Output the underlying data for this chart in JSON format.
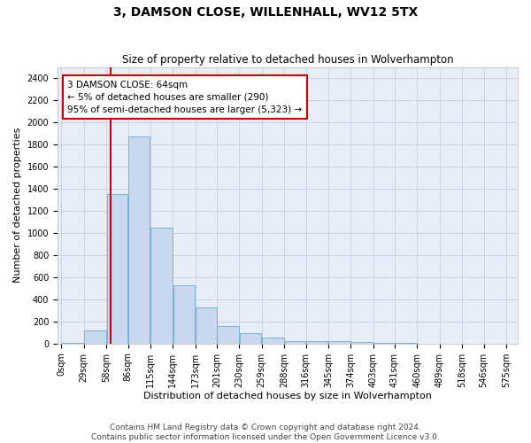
{
  "title": "3, DAMSON CLOSE, WILLENHALL, WV12 5TX",
  "subtitle": "Size of property relative to detached houses in Wolverhampton",
  "xlabel": "Distribution of detached houses by size in Wolverhampton",
  "ylabel": "Number of detached properties",
  "footer_line1": "Contains HM Land Registry data © Crown copyright and database right 2024.",
  "footer_line2": "Contains public sector information licensed under the Open Government Licence v3.0.",
  "bar_color": "#c8d9ef",
  "bar_edge_color": "#6aaad4",
  "grid_color": "#c8d4e8",
  "bg_color": "#e8eef8",
  "property_line_color": "#cc0000",
  "annotation_box_color": "#cc0000",
  "annotation_line1": "3 DAMSON CLOSE: 64sqm",
  "annotation_line2": "← 5% of detached houses are smaller (290)",
  "annotation_line3": "95% of semi-detached houses are larger (5,323) →",
  "property_size": 64,
  "bar_bins": [
    0,
    29,
    58,
    86,
    115,
    144,
    173,
    201,
    230,
    259,
    288,
    316,
    345,
    374,
    403,
    431,
    460,
    489,
    518,
    546,
    575
  ],
  "bar_heights": [
    5,
    120,
    1350,
    1870,
    1050,
    530,
    330,
    155,
    90,
    50,
    25,
    20,
    18,
    15,
    8,
    2,
    1,
    0,
    1,
    0
  ],
  "xlim": [
    -5,
    590
  ],
  "ylim": [
    0,
    2500
  ],
  "yticks": [
    0,
    200,
    400,
    600,
    800,
    1000,
    1200,
    1400,
    1600,
    1800,
    2000,
    2200,
    2400
  ],
  "xtick_labels": [
    "0sqm",
    "29sqm",
    "58sqm",
    "86sqm",
    "115sqm",
    "144sqm",
    "173sqm",
    "201sqm",
    "230sqm",
    "259sqm",
    "288sqm",
    "316sqm",
    "345sqm",
    "374sqm",
    "403sqm",
    "431sqm",
    "460sqm",
    "489sqm",
    "518sqm",
    "546sqm",
    "575sqm"
  ],
  "title_fontsize": 10,
  "subtitle_fontsize": 8.5,
  "axis_label_fontsize": 8,
  "tick_fontsize": 7,
  "annotation_fontsize": 7.5,
  "footer_fontsize": 6.5
}
